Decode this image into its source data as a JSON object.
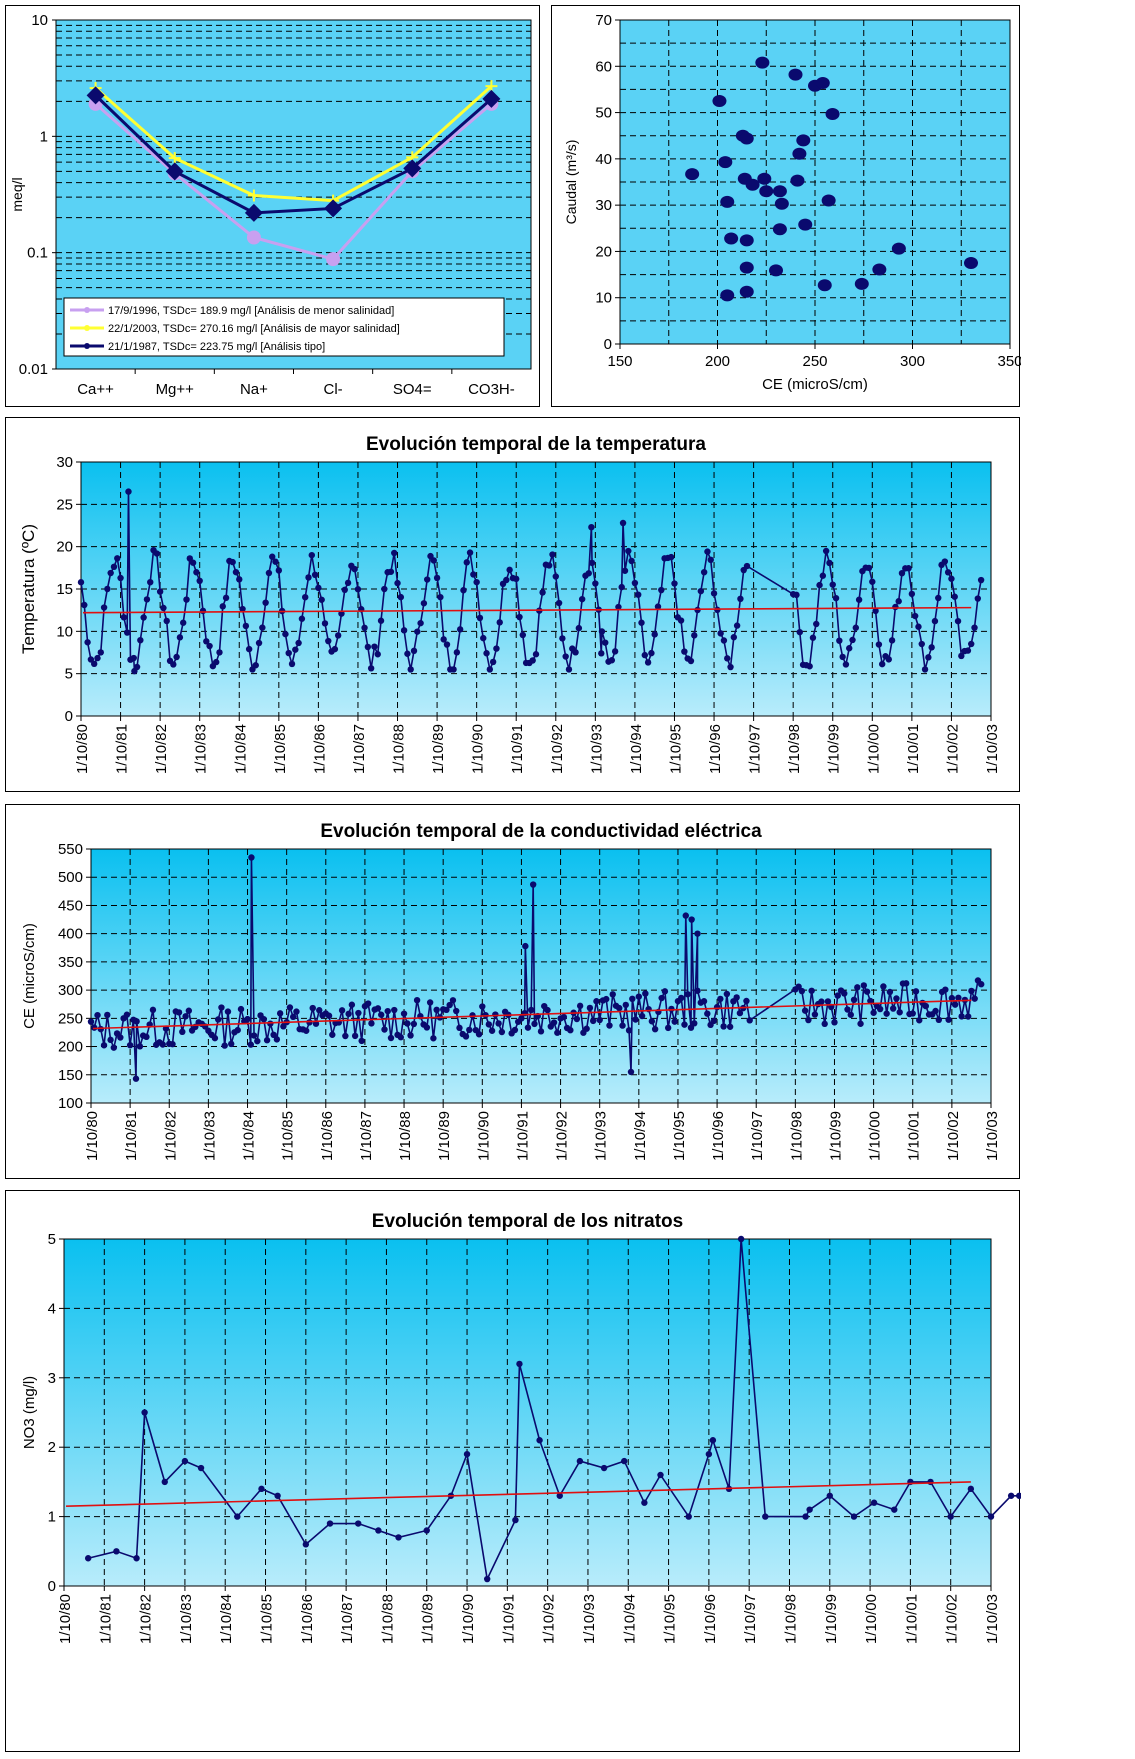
{
  "chart_data": [
    {
      "id": "schoeller",
      "type": "line",
      "yscale": "log",
      "ylim": [
        0.01,
        10
      ],
      "y_ticks": [
        "0.01",
        "0.1",
        "1",
        "10"
      ],
      "ylabel": "meq/l",
      "categories": [
        "Ca++",
        "Mg++",
        "Na+",
        "Cl-",
        "SO4=",
        "CO3H-"
      ],
      "series": [
        {
          "name": "17/9/1996, TSDc= 189.9 mg/l  [Análisis de menor salinidad]",
          "color": "#c8a0f0",
          "marker": "circle",
          "values": [
            1.9,
            0.48,
            0.135,
            0.088,
            0.5,
            1.9
          ]
        },
        {
          "name": "22/1/2003, TSDc= 270.16 mg/l  [Análisis de mayor salinidad]",
          "color": "#ffff33",
          "marker": "plus",
          "values": [
            2.6,
            0.65,
            0.31,
            0.28,
            0.66,
            2.7
          ]
        },
        {
          "name": "21/1/1987, TSDc= 223.75 mg/l  [Análisis tipo]",
          "color": "#0a0a6e",
          "marker": "diamond",
          "values": [
            2.25,
            0.5,
            0.22,
            0.24,
            0.53,
            2.1
          ]
        }
      ],
      "legend": "bottom",
      "background": "#5ad2f5"
    },
    {
      "id": "caudal",
      "type": "scatter",
      "xlabel": "CE (microS/cm)",
      "ylabel": "Caudal (m³/s)",
      "xlim": [
        150,
        350
      ],
      "ylim": [
        0,
        70
      ],
      "x_ticks": [
        "150",
        "200",
        "250",
        "300",
        "350"
      ],
      "y_ticks": [
        "0",
        "10",
        "20",
        "30",
        "40",
        "50",
        "60",
        "70"
      ],
      "color": "#0a0a6e",
      "points": [
        [
          187,
          36.7
        ],
        [
          201,
          52.5
        ],
        [
          204,
          39.3
        ],
        [
          205,
          30.7
        ],
        [
          205,
          10.5
        ],
        [
          207,
          22.8
        ],
        [
          213,
          45
        ],
        [
          214,
          35.7
        ],
        [
          215,
          44.4
        ],
        [
          215,
          22.4
        ],
        [
          215,
          16.5
        ],
        [
          215,
          11.3
        ],
        [
          218,
          34.4
        ],
        [
          223,
          60.8
        ],
        [
          224,
          35.7
        ],
        [
          225,
          33
        ],
        [
          230,
          15.9
        ],
        [
          232,
          24.8
        ],
        [
          232,
          33
        ],
        [
          233,
          30.3
        ],
        [
          240,
          58.2
        ],
        [
          241,
          35.3
        ],
        [
          242,
          41.1
        ],
        [
          244,
          44
        ],
        [
          245,
          25.8
        ],
        [
          250,
          55.8
        ],
        [
          254,
          56.4
        ],
        [
          255,
          12.7
        ],
        [
          257,
          31
        ],
        [
          259,
          49.7
        ],
        [
          274,
          13
        ],
        [
          283,
          16.1
        ],
        [
          293,
          20.6
        ],
        [
          330,
          17.5
        ]
      ],
      "grid": true,
      "background": "#5ad2f5"
    },
    {
      "id": "temperatura",
      "type": "line",
      "title": "Evolución temporal de la temperatura",
      "ylabel": "Temperatura (ºC)",
      "ylim": [
        0,
        30
      ],
      "y_ticks": [
        "0",
        "5",
        "10",
        "15",
        "20",
        "25",
        "30"
      ],
      "x_ticks": [
        "1/10/80",
        "1/10/81",
        "1/10/82",
        "1/10/83",
        "1/10/84",
        "1/10/85",
        "1/10/86",
        "1/10/87",
        "1/10/88",
        "1/10/89",
        "1/10/90",
        "1/10/91",
        "1/10/92",
        "1/10/93",
        "1/10/94",
        "1/10/95",
        "1/10/96",
        "1/10/97",
        "1/10/98",
        "1/10/99",
        "1/10/00",
        "1/10/01",
        "1/10/02",
        "1/10/03"
      ],
      "series_color": "#0a0a6e",
      "trend": {
        "color": "#e01010",
        "start": 12.2,
        "end": 12.8
      },
      "seasonal": {
        "mean": 12.3,
        "amplitude": 6.0,
        "peak_phase": 0.85
      },
      "spikes": [
        [
          1.2,
          26.5
        ],
        [
          1.35,
          5.3
        ],
        [
          13.7,
          22.8
        ],
        [
          12.9,
          22.3
        ],
        [
          13.15,
          7.4
        ]
      ],
      "background": "#5ad2f5"
    },
    {
      "id": "conductividad",
      "type": "line",
      "title": "Evolución temporal de la conductividad eléctrica",
      "ylabel": "CE (microS/cm)",
      "ylim": [
        100,
        550
      ],
      "y_ticks": [
        "100",
        "150",
        "200",
        "250",
        "300",
        "350",
        "400",
        "450",
        "500",
        "550"
      ],
      "x_ticks": [
        "1/10/80",
        "1/10/81",
        "1/10/82",
        "1/10/83",
        "1/10/84",
        "1/10/85",
        "1/10/86",
        "1/10/87",
        "1/10/88",
        "1/10/89",
        "1/10/90",
        "1/10/91",
        "1/10/92",
        "1/10/93",
        "1/10/94",
        "1/10/95",
        "1/10/96",
        "1/10/97",
        "1/10/98",
        "1/10/99",
        "1/10/00",
        "1/10/01",
        "1/10/02",
        "1/10/03"
      ],
      "series_color": "#0a0a6e",
      "trend": {
        "color": "#e01010",
        "start": 232,
        "end": 282
      },
      "spikes": [
        [
          1.15,
          143
        ],
        [
          4.1,
          535
        ],
        [
          11.3,
          487
        ],
        [
          11.1,
          378
        ],
        [
          13.8,
          155
        ],
        [
          15.2,
          432
        ],
        [
          15.35,
          425
        ],
        [
          15.5,
          400
        ]
      ],
      "background": "#5ad2f5"
    },
    {
      "id": "nitratos",
      "type": "line",
      "title": "Evolución temporal de los nitratos",
      "ylabel": "NO3 (mg/l)",
      "ylim": [
        0,
        5
      ],
      "y_ticks": [
        "0",
        "1",
        "2",
        "3",
        "4",
        "5"
      ],
      "x_ticks": [
        "1/10/80",
        "1/10/81",
        "1/10/82",
        "1/10/83",
        "1/10/84",
        "1/10/85",
        "1/10/86",
        "1/10/87",
        "1/10/88",
        "1/10/89",
        "1/10/90",
        "1/10/91",
        "1/10/92",
        "1/10/93",
        "1/10/94",
        "1/10/95",
        "1/10/96",
        "1/10/97",
        "1/10/98",
        "1/10/99",
        "1/10/00",
        "1/10/01",
        "1/10/02",
        "1/10/03"
      ],
      "series_color": "#0a0a6e",
      "trend": {
        "color": "#e01010",
        "start": 1.15,
        "end": 1.5
      },
      "points": [
        [
          0.6,
          0.4
        ],
        [
          1.3,
          0.5
        ],
        [
          1.8,
          0.4
        ],
        [
          2.0,
          2.5
        ],
        [
          2.5,
          1.5
        ],
        [
          3.0,
          1.8
        ],
        [
          3.4,
          1.7
        ],
        [
          4.3,
          1.0
        ],
        [
          4.9,
          1.4
        ],
        [
          5.3,
          1.3
        ],
        [
          6.0,
          0.6
        ],
        [
          6.6,
          0.9
        ],
        [
          7.3,
          0.9
        ],
        [
          7.8,
          0.8
        ],
        [
          8.3,
          0.7
        ],
        [
          9.0,
          0.8
        ],
        [
          9.6,
          1.3
        ],
        [
          10.0,
          1.9
        ],
        [
          10.5,
          0.1
        ],
        [
          11.2,
          0.95
        ],
        [
          11.3,
          3.2
        ],
        [
          11.8,
          2.1
        ],
        [
          12.3,
          1.3
        ],
        [
          12.8,
          1.8
        ],
        [
          13.4,
          1.7
        ],
        [
          13.9,
          1.8
        ],
        [
          14.4,
          1.2
        ],
        [
          14.8,
          1.6
        ],
        [
          15.5,
          1.0
        ],
        [
          16.0,
          1.9
        ],
        [
          16.1,
          2.1
        ],
        [
          16.5,
          1.4
        ],
        [
          16.8,
          5.0
        ],
        [
          17.4,
          1.0
        ],
        [
          18.4,
          1.0
        ],
        [
          18.5,
          1.1
        ],
        [
          19.0,
          1.3
        ],
        [
          19.6,
          1.0
        ],
        [
          20.1,
          1.2
        ],
        [
          20.6,
          1.1
        ],
        [
          21.0,
          1.5
        ],
        [
          21.5,
          1.5
        ],
        [
          22.0,
          1.0
        ],
        [
          22.5,
          1.4
        ],
        [
          23.0,
          1.0
        ],
        [
          23.5,
          1.3
        ],
        [
          23.7,
          1.3
        ]
      ],
      "background": "#5ad2f5"
    }
  ]
}
